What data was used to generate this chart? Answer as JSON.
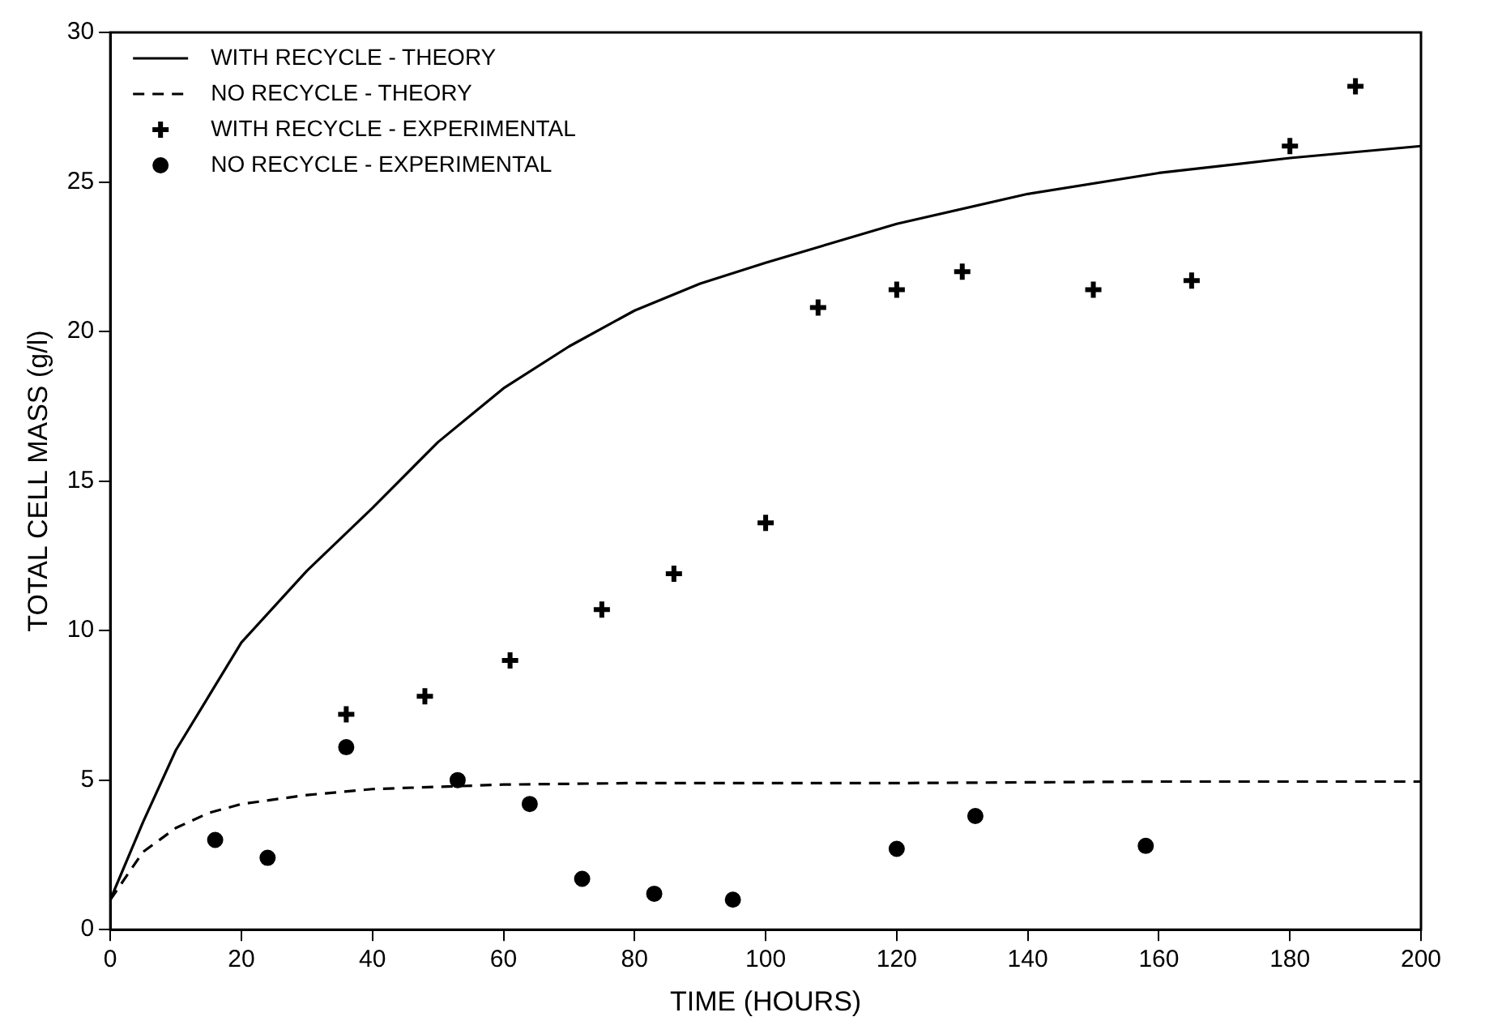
{
  "chart_data": {
    "type": "line",
    "xlabel": "TIME (HOURS)",
    "ylabel": "TOTAL CELL MASS (g/l)",
    "xlim": [
      0,
      200
    ],
    "xticks": [
      0,
      20,
      40,
      60,
      80,
      100,
      120,
      140,
      160,
      180,
      200
    ],
    "ylim": [
      0,
      30
    ],
    "yticks": [
      0,
      5,
      10,
      15,
      20,
      25,
      30
    ],
    "grid": false,
    "legend": "top left",
    "series": [
      {
        "name": "WITH RECYCLE - THEORY",
        "type": "line",
        "color": "#000000",
        "marker": "none",
        "line_style": "solid",
        "x": [
          0,
          5,
          10,
          20,
          30,
          40,
          50,
          60,
          70,
          80,
          90,
          100,
          120,
          140,
          160,
          180,
          200
        ],
        "values": [
          1.0,
          3.6,
          6.0,
          9.6,
          12.0,
          14.1,
          16.3,
          18.1,
          19.5,
          20.7,
          21.6,
          22.3,
          23.6,
          24.6,
          25.3,
          25.8,
          26.2
        ]
      },
      {
        "name": "NO RECYCLE - THEORY",
        "type": "line",
        "color": "#000000",
        "marker": "none",
        "line_style": "dashed",
        "x": [
          0,
          5,
          10,
          15,
          20,
          30,
          40,
          60,
          80,
          120,
          160,
          200
        ],
        "values": [
          1.0,
          2.6,
          3.4,
          3.9,
          4.2,
          4.5,
          4.7,
          4.85,
          4.9,
          4.9,
          4.95,
          4.95
        ]
      },
      {
        "name": "WITH RECYCLE - EXPERIMENTAL",
        "type": "scatter",
        "color": "#000000",
        "marker": "cross",
        "x": [
          36,
          48,
          61,
          75,
          86,
          100,
          108,
          120,
          130,
          150,
          165,
          180,
          190
        ],
        "values": [
          7.2,
          7.8,
          9.0,
          10.7,
          11.9,
          13.6,
          20.8,
          21.4,
          22.0,
          21.4,
          21.7,
          26.2,
          28.2
        ]
      },
      {
        "name": "NO RECYCLE - EXPERIMENTAL",
        "type": "scatter",
        "color": "#000000",
        "marker": "circle",
        "x": [
          16,
          24,
          36,
          53,
          64,
          72,
          83,
          95,
          120,
          132,
          158
        ],
        "values": [
          3.0,
          2.4,
          6.1,
          5.0,
          4.2,
          1.7,
          1.2,
          1.0,
          2.7,
          3.8,
          2.8
        ]
      }
    ]
  }
}
